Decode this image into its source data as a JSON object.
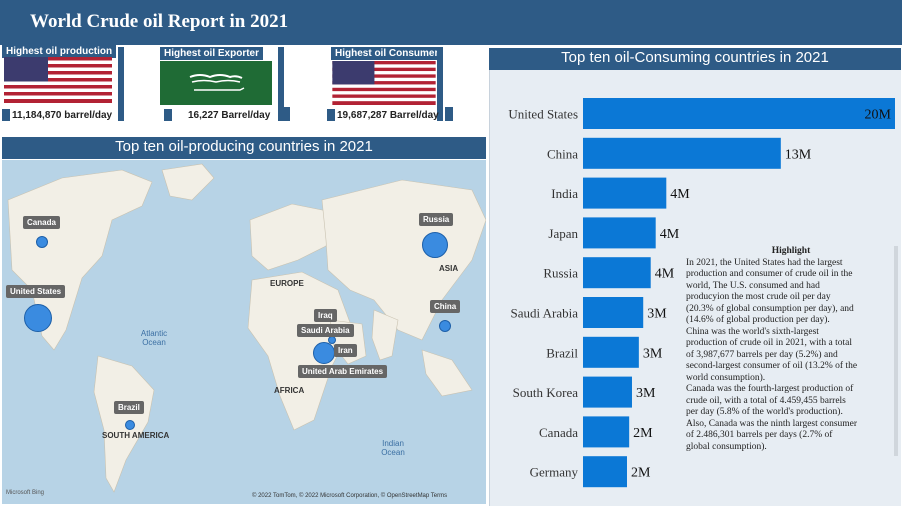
{
  "header": {
    "title": "World Crude oil Report in 2021"
  },
  "kpis": [
    {
      "label": "Highest oil production",
      "value": "11,184,870 barrel/day",
      "flag": "usa-flag"
    },
    {
      "label": "Highest oil Exporter",
      "value": "16,227 Barrel/day",
      "flag": "saudi-flag"
    },
    {
      "label": "Highest oil Consumer",
      "value": "19,687,287 Barrel/day",
      "flag": "usa-flag"
    }
  ],
  "map": {
    "title": "Top ten oil-producing countries in 2021",
    "countries": [
      "Canada",
      "United States",
      "Russia",
      "China",
      "Iraq",
      "Saudi Arabia",
      "Iran",
      "United Arab Emirates",
      "Brazil"
    ],
    "regions": [
      "EUROPE",
      "ASIA",
      "AFRICA",
      "SOUTH AMERICA"
    ],
    "oceans": [
      "Atlantic Ocean",
      "Indian Ocean"
    ],
    "brand": "Microsoft Bing",
    "credits": "© 2022 TomTom, © 2022 Microsoft Corporation, © OpenStreetMap  Terms"
  },
  "chart_data": {
    "type": "bar",
    "orientation": "horizontal",
    "title": "Top ten oil-Consuming countries in 2021",
    "categories": [
      "United States",
      "China",
      "India",
      "Japan",
      "Russia",
      "Saudi Arabia",
      "Brazil",
      "South Korea",
      "Canada",
      "Germany"
    ],
    "values": [
      20,
      13,
      4,
      4,
      4,
      3,
      3,
      3,
      2,
      2
    ],
    "bar_widths": [
      1.0,
      0.634,
      0.267,
      0.233,
      0.217,
      0.193,
      0.179,
      0.157,
      0.148,
      0.141
    ],
    "data_labels": [
      "20M",
      "13M",
      "4M",
      "4M",
      "4M",
      "3M",
      "3M",
      "3M",
      "2M",
      "2M"
    ],
    "bar_color": "#0b78d6"
  },
  "highlight": {
    "title": "Highlight",
    "lines": [
      "In 2021, the United States had the largest",
      "production and consumer of crude oil in the",
      "world, The U.S. consumed and had",
      "producyion the most crude oil per day",
      "(20.3% of global consumption per day), and",
      "(14.6% of global production per day).",
      "China was the world's sixth-largest",
      "production of crude oil in 2021, with a total",
      "of 3,987,677 barrels per day (5.2%) and",
      "second-largest consumer of oil (13.2% of the",
      "world consumption).",
      "Canada was the fourth-largest production of",
      "crude oil, with a total of 4.459,455 barrels",
      "per day (5.8% of the world's production).",
      "Also, Canada was the ninth largest consumer",
      "of  2.486,301 barrels per days (2.7% of",
      "global consumption)."
    ]
  }
}
